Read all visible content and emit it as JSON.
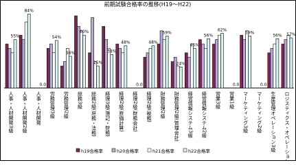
{
  "chart_data": {
    "type": "bar",
    "title": "前期試験合格率の推移(H19～H22)",
    "categories": [
      "人事・人材開発3級",
      "人事・人材開発2級",
      "人事・人材開発",
      "労務管理3級",
      "労務管理2級",
      "総務3級",
      "総務2級(庶務・法務)",
      "経理3級(簿記・財務)",
      "経理2級(原価計算)",
      "経理2級(財務会計)",
      "経理2級(税務)",
      "財務管理2級",
      "財務管理2級(管理会計)",
      "経営情報システム3級",
      "経営情報システム2級",
      "営業3級",
      "営業1級",
      "マーケティング3級",
      "マーケティング2級",
      "生産管理オペレーション3級",
      "ロジスティクス・オペレーション3級"
    ],
    "series": [
      {
        "name": "h19合格率",
        "color": "#7b2b52",
        "values": [
          50,
          60,
          0,
          45,
          25,
          82,
          40,
          70,
          50,
          0,
          35,
          50,
          30,
          40,
          55,
          50,
          0,
          60,
          0,
          40,
          50
        ]
      },
      {
        "name": "h20合格率",
        "color": "#b9a9d9",
        "values": [
          45,
          55,
          0,
          50,
          30,
          70,
          80,
          55,
          45,
          0,
          40,
          65,
          35,
          35,
          50,
          55,
          0,
          55,
          0,
          45,
          55
        ]
      },
      {
        "name": "h21合格率",
        "color": "#ffffff",
        "values": [
          40,
          75,
          0,
          40,
          45,
          65,
          30,
          45,
          40,
          0,
          45,
          55,
          25,
          50,
          45,
          60,
          0,
          65,
          0,
          50,
          60
        ]
      },
      {
        "name": "h22合格率",
        "color": "#d7f4f4",
        "values": [
          55,
          84,
          0,
          54,
          36,
          60,
          25,
          38,
          48,
          0,
          48,
          59,
          24,
          45,
          56,
          62,
          0,
          59,
          0,
          56,
          57
        ],
        "value_labels": [
          "55%",
          "84%",
          "0.0",
          "54%",
          "36%",
          "60%",
          "25%",
          "38%",
          "48%",
          "0.0",
          "48%",
          "59%",
          "24%",
          "45%",
          "56%",
          "62%",
          "0.0",
          "59%",
          "0.0",
          "56%",
          "57%"
        ]
      }
    ],
    "ylim": [
      0,
      100
    ],
    "legend": "bottom"
  }
}
